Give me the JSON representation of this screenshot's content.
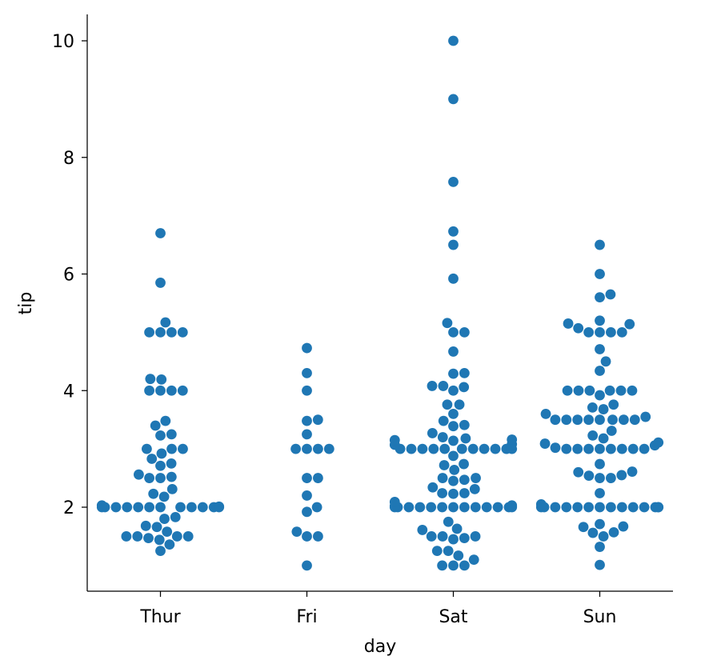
{
  "chart_data": {
    "type": "scatter",
    "subtype": "swarm",
    "title": "",
    "xlabel": "day",
    "ylabel": "tip",
    "categories": [
      "Thur",
      "Fri",
      "Sat",
      "Sun"
    ],
    "yticks": [
      2,
      4,
      6,
      8,
      10
    ],
    "ylim": [
      0.55,
      10.45
    ],
    "grid": false,
    "legend": "none",
    "marker_color": "#1f77b4",
    "series": [
      {
        "category": "Thur",
        "values": [
          1.25,
          1.36,
          1.44,
          1.47,
          1.5,
          1.5,
          1.5,
          1.5,
          1.58,
          1.66,
          1.68,
          1.8,
          1.83,
          2.0,
          2.0,
          2.0,
          2.0,
          2.0,
          2.0,
          2.0,
          2.0,
          2.0,
          2.0,
          2.0,
          2.0,
          2.01,
          2.03,
          2.18,
          2.23,
          2.31,
          2.5,
          2.5,
          2.52,
          2.56,
          2.71,
          2.75,
          2.83,
          2.92,
          3.0,
          3.0,
          3.0,
          3.23,
          3.25,
          3.4,
          3.48,
          4.0,
          4.0,
          4.0,
          4.0,
          4.19,
          4.2,
          5.0,
          5.0,
          5.0,
          5.0,
          5.17,
          5.85,
          6.7
        ]
      },
      {
        "category": "Fri",
        "values": [
          1.0,
          1.5,
          1.5,
          1.58,
          1.92,
          2.0,
          2.2,
          2.5,
          2.5,
          3.0,
          3.0,
          3.0,
          3.0,
          3.25,
          3.48,
          3.5,
          4.0,
          4.3,
          4.73
        ]
      },
      {
        "category": "Sat",
        "values": [
          1.0,
          1.0,
          1.0,
          1.1,
          1.17,
          1.25,
          1.25,
          1.45,
          1.47,
          1.5,
          1.5,
          1.5,
          1.61,
          1.63,
          1.75,
          2.0,
          2.0,
          2.0,
          2.0,
          2.0,
          2.0,
          2.0,
          2.0,
          2.0,
          2.0,
          2.0,
          2.0,
          2.0,
          2.01,
          2.02,
          2.03,
          2.09,
          2.23,
          2.24,
          2.24,
          2.31,
          2.34,
          2.45,
          2.47,
          2.5,
          2.5,
          2.64,
          2.72,
          2.74,
          2.88,
          3.0,
          3.0,
          3.0,
          3.0,
          3.0,
          3.0,
          3.0,
          3.0,
          3.0,
          3.0,
          3.0,
          3.07,
          3.08,
          3.14,
          3.15,
          3.16,
          3.18,
          3.2,
          3.27,
          3.39,
          3.41,
          3.48,
          3.6,
          3.76,
          3.76,
          4.0,
          4.06,
          4.08,
          4.08,
          4.29,
          4.3,
          4.67,
          5.0,
          5.0,
          5.16,
          5.92,
          6.5,
          6.73,
          7.58,
          9.0,
          10.0
        ]
      },
      {
        "category": "Sun",
        "values": [
          1.01,
          1.32,
          1.5,
          1.56,
          1.57,
          1.66,
          1.67,
          1.71,
          2.0,
          2.0,
          2.0,
          2.0,
          2.0,
          2.0,
          2.0,
          2.0,
          2.0,
          2.0,
          2.0,
          2.0,
          2.0,
          2.0,
          2.05,
          2.24,
          2.5,
          2.5,
          2.54,
          2.55,
          2.6,
          2.61,
          2.74,
          3.0,
          3.0,
          3.0,
          3.0,
          3.0,
          3.0,
          3.0,
          3.0,
          3.02,
          3.06,
          3.09,
          3.11,
          3.18,
          3.23,
          3.31,
          3.5,
          3.5,
          3.5,
          3.5,
          3.5,
          3.5,
          3.5,
          3.5,
          3.55,
          3.6,
          3.68,
          3.71,
          3.76,
          3.92,
          4.0,
          4.0,
          4.0,
          4.0,
          4.0,
          4.0,
          4.34,
          4.5,
          4.71,
          5.0,
          5.0,
          5.0,
          5.0,
          5.07,
          5.14,
          5.15,
          5.2,
          5.6,
          5.65,
          6.0,
          6.5
        ]
      }
    ]
  }
}
